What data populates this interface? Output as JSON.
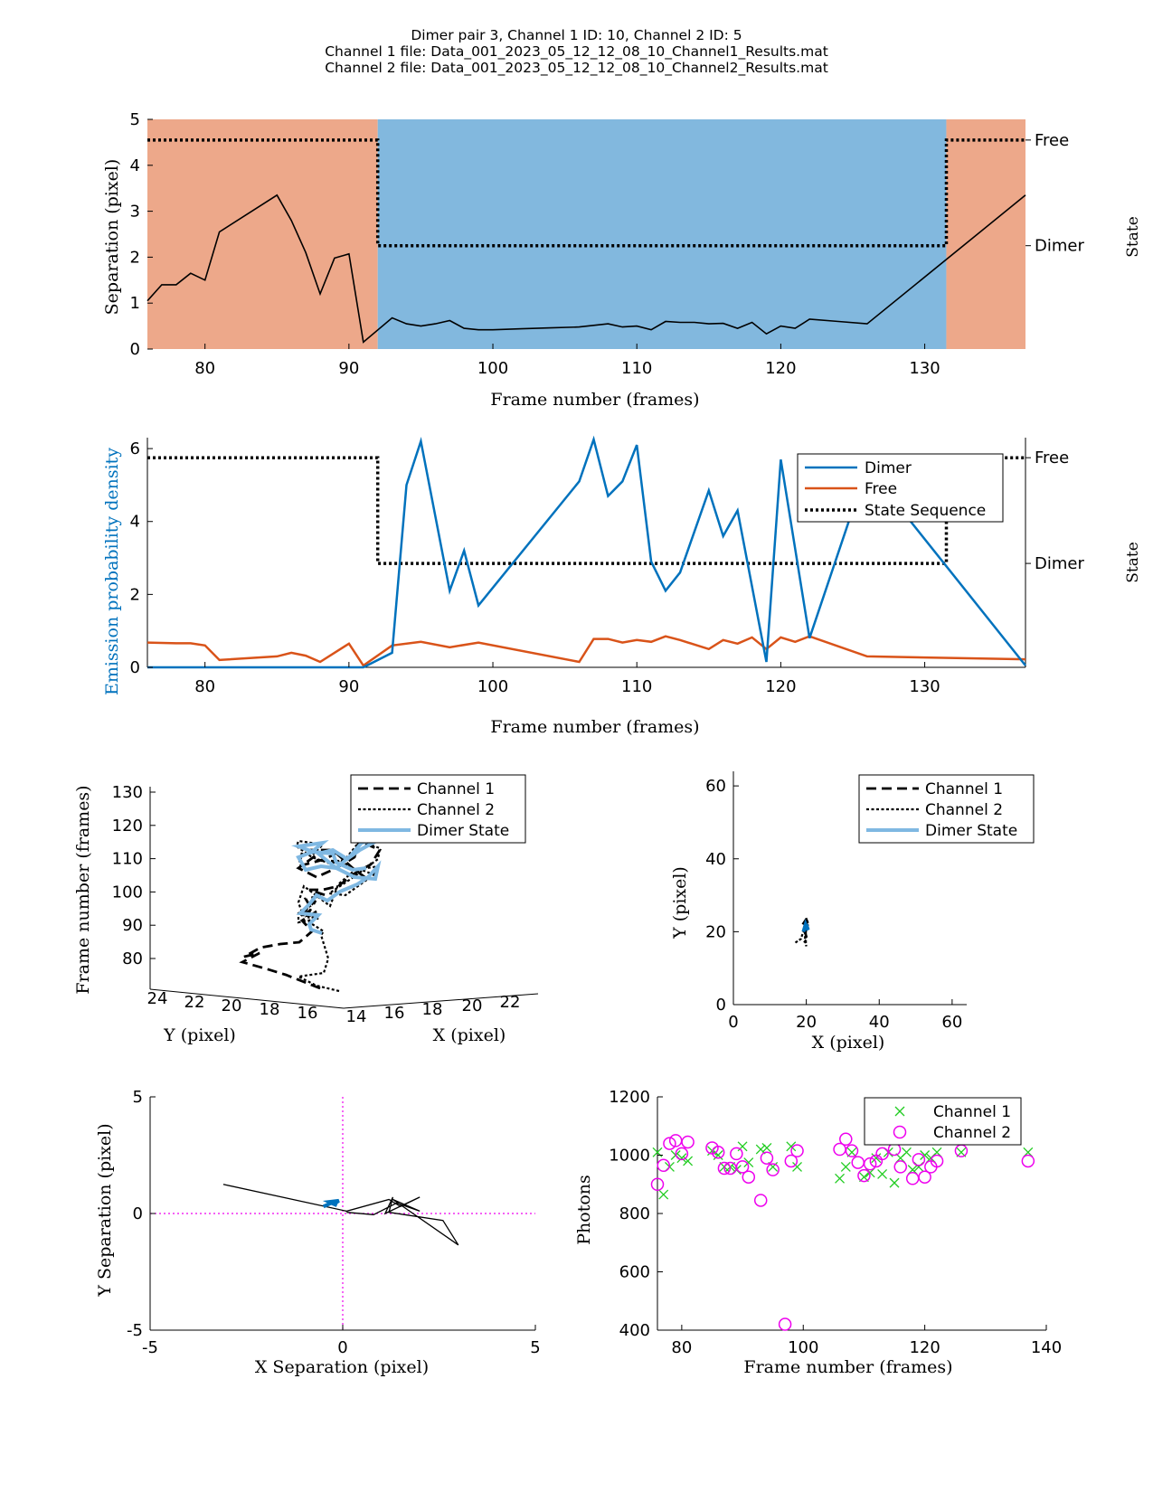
{
  "figure": {
    "title_lines": [
      "Dimer pair 3, Channel 1 ID: 10, Channel 2 ID: 5",
      "Channel 1 file: Data_001_2023_05_12_12_08_10_Channel1_Results.mat",
      "Channel 2 file: Data_001_2023_05_12_12_08_10_Channel2_Results.mat"
    ],
    "colors": {
      "free_bg": "#EDA88A",
      "dimer_bg": "#82B8DE",
      "dimer_line": "#0072BD",
      "free_line": "#D95319",
      "channel1_marker": "#22CC22",
      "channel2_marker": "#EE00EE",
      "dimer_state_line": "#7FB8E2",
      "axis": "#000000",
      "crosshair": "#EE00EE"
    }
  },
  "chart_data": [
    {
      "id": "separation",
      "type": "line",
      "xlabel": "Frame number (frames)",
      "ylabel": "Separation (pixel)",
      "right_label": "State",
      "xlim": [
        76,
        137
      ],
      "ylim": [
        0,
        5
      ],
      "xticks": [
        80,
        90,
        100,
        110,
        120,
        130
      ],
      "yticks": [
        0,
        1,
        2,
        3,
        4,
        5
      ],
      "state_ticks": [
        {
          "label": "Free",
          "value": 4.55
        },
        {
          "label": "Dimer",
          "value": 2.25
        }
      ],
      "state_regions": [
        {
          "state": "Free",
          "from": 76,
          "to": 92
        },
        {
          "state": "Dimer",
          "from": 92,
          "to": 131.5
        },
        {
          "state": "Free",
          "from": 131.5,
          "to": 137
        }
      ],
      "state_sequence": [
        [
          76,
          4.55
        ],
        [
          92,
          4.55
        ],
        [
          92,
          2.25
        ],
        [
          131.5,
          2.25
        ],
        [
          131.5,
          4.55
        ],
        [
          137,
          4.55
        ]
      ],
      "x": [
        76,
        77,
        78,
        79,
        80,
        81,
        85,
        86,
        87,
        88,
        89,
        90,
        91,
        93,
        94,
        95,
        96,
        97,
        98,
        99,
        100,
        102,
        104,
        106,
        108,
        109,
        110,
        111,
        112,
        113,
        114,
        115,
        116,
        117,
        118,
        119,
        120,
        121,
        122,
        124,
        126,
        137
      ],
      "y": [
        1.05,
        1.4,
        1.4,
        1.65,
        1.5,
        2.55,
        3.35,
        2.8,
        2.1,
        1.2,
        1.98,
        2.07,
        0.15,
        0.68,
        0.55,
        0.5,
        0.55,
        0.62,
        0.45,
        0.42,
        0.42,
        0.44,
        0.46,
        0.48,
        0.55,
        0.48,
        0.5,
        0.42,
        0.6,
        0.58,
        0.58,
        0.55,
        0.56,
        0.45,
        0.58,
        0.33,
        0.5,
        0.45,
        0.65,
        0.6,
        0.55,
        3.35
      ]
    },
    {
      "id": "emission",
      "type": "line",
      "xlabel": "Frame number (frames)",
      "ylabel": "Emission probability density",
      "right_label": "State",
      "xlim": [
        76,
        137
      ],
      "ylim": [
        0,
        6.3
      ],
      "xticks": [
        80,
        90,
        100,
        110,
        120,
        130
      ],
      "yticks": [
        0,
        2,
        4,
        6
      ],
      "state_ticks": [
        {
          "label": "Free",
          "value": 5.75
        },
        {
          "label": "Dimer",
          "value": 2.85
        }
      ],
      "legend": [
        "Dimer",
        "Free",
        "State Sequence"
      ],
      "legend_position": "top-right",
      "state_sequence": [
        [
          76,
          5.75
        ],
        [
          92,
          5.75
        ],
        [
          92,
          2.85
        ],
        [
          131.5,
          2.85
        ],
        [
          131.5,
          5.75
        ],
        [
          137,
          5.75
        ]
      ],
      "series": [
        {
          "name": "Dimer",
          "x": [
            76,
            90,
            91,
            93,
            94,
            95,
            97,
            98,
            99,
            106,
            107,
            108,
            109,
            110,
            111,
            112,
            113,
            115,
            116,
            117,
            119,
            120,
            122,
            126,
            137
          ],
          "y": [
            0,
            0,
            0,
            0.4,
            5.0,
            6.2,
            2.1,
            3.2,
            1.7,
            5.1,
            6.25,
            4.7,
            5.1,
            6.1,
            2.9,
            2.1,
            2.6,
            4.85,
            3.6,
            4.3,
            0.15,
            5.7,
            0.8,
            5.5,
            0.05
          ]
        },
        {
          "name": "Free",
          "x": [
            76,
            78,
            79,
            80,
            81,
            85,
            86,
            87,
            88,
            90,
            91,
            93,
            95,
            97,
            99,
            106,
            107,
            108,
            109,
            110,
            111,
            112,
            113,
            115,
            116,
            117,
            118,
            119,
            120,
            121,
            122,
            126,
            137
          ],
          "y": [
            0.68,
            0.66,
            0.66,
            0.6,
            0.2,
            0.3,
            0.4,
            0.32,
            0.15,
            0.65,
            0.05,
            0.6,
            0.7,
            0.55,
            0.68,
            0.15,
            0.78,
            0.78,
            0.68,
            0.75,
            0.7,
            0.85,
            0.75,
            0.5,
            0.75,
            0.65,
            0.82,
            0.5,
            0.82,
            0.7,
            0.85,
            0.3,
            0.22
          ]
        }
      ]
    },
    {
      "id": "trajectory3d",
      "type": "line",
      "xlabel": "X (pixel)",
      "ylabel": "Y (pixel)",
      "zlabel": "Frame number (frames)",
      "xticks": [
        14,
        16,
        18,
        20,
        22
      ],
      "yticks": [
        24,
        22,
        20,
        18,
        16
      ],
      "zticks": [
        80,
        90,
        100,
        110,
        120,
        130
      ],
      "legend": [
        "Channel 1",
        "Channel 2",
        "Dimer State"
      ],
      "legend_position": "top-right"
    },
    {
      "id": "xy",
      "type": "line",
      "xlabel": "X (pixel)",
      "ylabel": "Y (pixel)",
      "xlim": [
        0,
        64
      ],
      "ylim": [
        0,
        64
      ],
      "xticks": [
        0,
        20,
        40,
        60
      ],
      "yticks": [
        0,
        20,
        40,
        60
      ],
      "legend": [
        "Channel 1",
        "Channel 2",
        "Dimer State"
      ],
      "legend_position": "top-right",
      "series": [
        {
          "name": "Channel 1",
          "x": [
            19,
            20,
            19.5,
            20.5,
            19.2,
            20,
            19.8,
            20.6,
            19.5,
            20.2,
            19.4
          ],
          "y": [
            22,
            23.5,
            21,
            22,
            19.5,
            22.5,
            24,
            22,
            20.5,
            18,
            17
          ]
        },
        {
          "name": "Channel 2",
          "x": [
            17,
            18.5,
            19,
            20,
            19.6,
            20,
            19.5,
            20.3,
            19.8,
            20.2
          ],
          "y": [
            17,
            18,
            19.5,
            21,
            18,
            16,
            21,
            22.5,
            19,
            23
          ]
        },
        {
          "name": "Dimer State",
          "x": [
            19.2,
            19.8,
            20.2,
            19.5,
            20.5,
            20
          ],
          "y": [
            20,
            22,
            21,
            21.8,
            20.5,
            22
          ]
        }
      ]
    },
    {
      "id": "separation_xy",
      "type": "line",
      "xlabel": "X Separation (pixel)",
      "ylabel": "Y Separation (pixel)",
      "xlim": [
        -5,
        5
      ],
      "ylim": [
        -5,
        5
      ],
      "xticks": [
        -5,
        0,
        5
      ],
      "yticks": [
        -5,
        0,
        5
      ],
      "series": [
        {
          "name": "",
          "x": [
            -3.1,
            0.1,
            1.2,
            1.5,
            2,
            1.1,
            1.3,
            1.2,
            2.6,
            3.0,
            1.3,
            2.0,
            1.4,
            0.8,
            0.1
          ],
          "y": [
            1.25,
            0.1,
            0.6,
            0.3,
            0.7,
            0.0,
            0.7,
            0.05,
            -0.3,
            -1.35,
            0.6,
            0.1,
            0.45,
            -0.05,
            0.05
          ]
        },
        {
          "name": "dimer",
          "x": [
            -0.5,
            -0.3,
            -0.15,
            -0.35,
            -0.1,
            -0.25
          ],
          "y": [
            0.3,
            0.45,
            0.35,
            0.5,
            0.55,
            0.38
          ]
        }
      ]
    },
    {
      "id": "photons",
      "type": "scatter",
      "xlabel": "Frame number (frames)",
      "ylabel": "Photons",
      "xlim": [
        76,
        140
      ],
      "ylim": [
        400,
        1200
      ],
      "xticks": [
        80,
        100,
        120,
        140
      ],
      "yticks": [
        400,
        600,
        800,
        1000,
        1200
      ],
      "legend": [
        "Channel 1",
        "Channel 2"
      ],
      "legend_position": "top-right",
      "series": [
        {
          "name": "Channel 1",
          "x": [
            76,
            77,
            78,
            79,
            80,
            81,
            85,
            86,
            87,
            88,
            89,
            90,
            91,
            93,
            94,
            95,
            98,
            99,
            106,
            107,
            108,
            110,
            111,
            112,
            113,
            114,
            115,
            116,
            117,
            118,
            119,
            120,
            121,
            122,
            126,
            137
          ],
          "y": [
            1010,
            865,
            960,
            1000,
            990,
            980,
            1015,
            1000,
            960,
            960,
            950,
            1030,
            975,
            1020,
            1025,
            960,
            1030,
            960,
            920,
            960,
            1010,
            925,
            940,
            990,
            935,
            1010,
            905,
            990,
            1010,
            950,
            960,
            1000,
            990,
            1010,
            1010,
            1010
          ]
        },
        {
          "name": "Channel 2",
          "x": [
            76,
            77,
            78,
            79,
            80,
            81,
            85,
            86,
            87,
            88,
            89,
            90,
            91,
            93,
            94,
            95,
            97,
            98,
            99,
            106,
            107,
            108,
            109,
            110,
            111,
            112,
            113,
            115,
            116,
            118,
            119,
            120,
            121,
            122,
            126,
            137
          ],
          "y": [
            900,
            965,
            1040,
            1050,
            1005,
            1045,
            1025,
            1010,
            955,
            955,
            1005,
            960,
            925,
            845,
            990,
            950,
            420,
            980,
            1015,
            1020,
            1055,
            1015,
            975,
            930,
            970,
            980,
            1005,
            1020,
            960,
            920,
            985,
            925,
            960,
            980,
            1015,
            980
          ]
        }
      ]
    }
  ]
}
